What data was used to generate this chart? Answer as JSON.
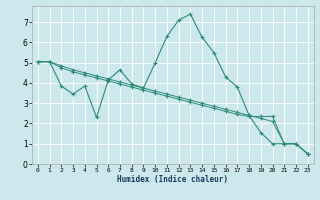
{
  "xlabel": "Humidex (Indice chaleur)",
  "background_color": "#cce8ed",
  "grid_color": "#ffffff",
  "line_color": "#2e8b7a",
  "xlim": [
    -0.5,
    23.5
  ],
  "ylim": [
    0,
    7.8
  ],
  "xticks": [
    0,
    1,
    2,
    3,
    4,
    5,
    6,
    7,
    8,
    9,
    10,
    11,
    12,
    13,
    14,
    15,
    16,
    17,
    18,
    19,
    20,
    21,
    22,
    23
  ],
  "yticks": [
    0,
    1,
    2,
    3,
    4,
    5,
    6,
    7
  ],
  "series_main_x": [
    0,
    1,
    2,
    3,
    4,
    5,
    6,
    7,
    8,
    9,
    10,
    11,
    12,
    13,
    14,
    15,
    16,
    17,
    18,
    19,
    20,
    21,
    22,
    23
  ],
  "series_main_y": [
    5.05,
    5.05,
    3.85,
    3.45,
    3.85,
    2.3,
    4.15,
    4.65,
    3.95,
    3.75,
    5.0,
    6.3,
    7.1,
    7.4,
    6.25,
    5.5,
    4.3,
    3.8,
    2.4,
    1.55,
    1.0,
    1.0,
    1.0,
    0.5
  ],
  "series_trend1_x": [
    0,
    1,
    2,
    3,
    4,
    5,
    6,
    7,
    8,
    9,
    10,
    11,
    12,
    13,
    14,
    15,
    16,
    17,
    18,
    19,
    20,
    21,
    22,
    23
  ],
  "series_trend1_y": [
    5.05,
    5.05,
    4.75,
    4.55,
    4.4,
    4.25,
    4.1,
    3.95,
    3.8,
    3.65,
    3.5,
    3.35,
    3.2,
    3.05,
    2.9,
    2.75,
    2.6,
    2.45,
    2.35,
    2.35,
    2.35,
    1.0,
    1.0,
    0.5
  ],
  "series_trend2_x": [
    0,
    1,
    2,
    3,
    4,
    5,
    6,
    7,
    8,
    9,
    10,
    11,
    12,
    13,
    14,
    15,
    16,
    17,
    18,
    19,
    20,
    21,
    22,
    23
  ],
  "series_trend2_y": [
    5.05,
    5.05,
    4.85,
    4.65,
    4.5,
    4.35,
    4.2,
    4.05,
    3.9,
    3.75,
    3.6,
    3.45,
    3.3,
    3.15,
    3.0,
    2.85,
    2.7,
    2.55,
    2.4,
    2.25,
    2.1,
    1.0,
    1.0,
    0.5
  ]
}
